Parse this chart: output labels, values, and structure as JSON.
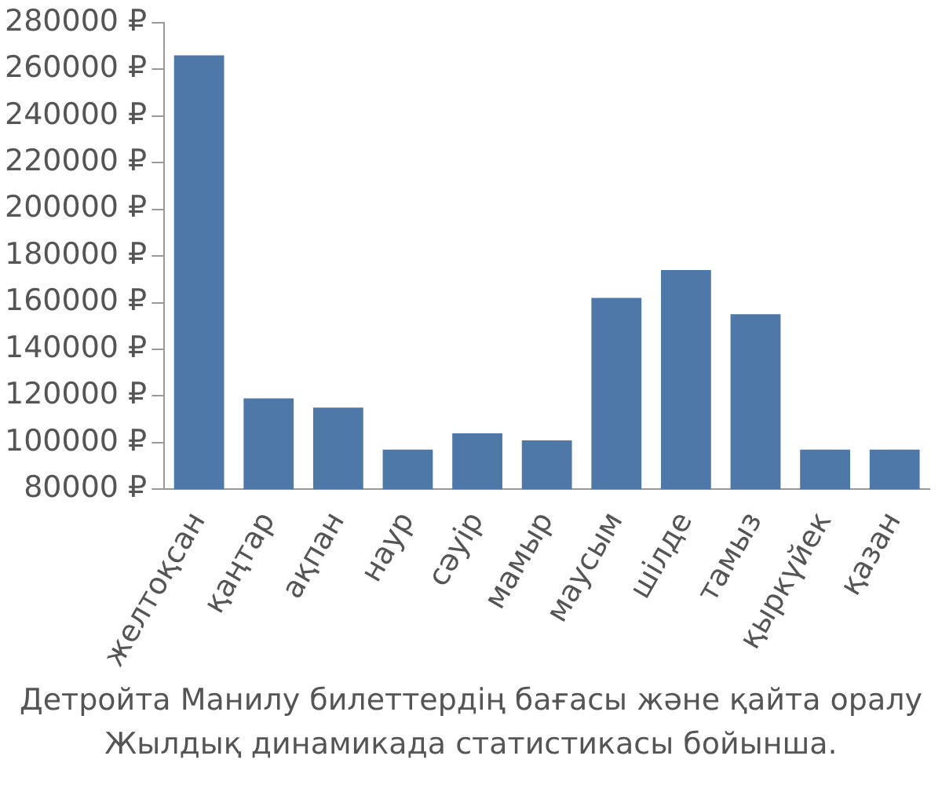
{
  "chart_data": {
    "type": "bar",
    "categories": [
      "желтоқсан",
      "қаңтар",
      "ақпан",
      "наур",
      "сәуір",
      "мамыр",
      "маусым",
      "шілде",
      "тамыз",
      "қыркүйек",
      "қазан"
    ],
    "values": [
      266000,
      119000,
      115000,
      97000,
      104000,
      101000,
      162000,
      174000,
      155000,
      97000,
      97000
    ],
    "color": "#4e78a8",
    "ylim": [
      80000,
      280000
    ],
    "yticks": [
      {
        "value": 80000,
        "label": "80000 ₽"
      },
      {
        "value": 100000,
        "label": "100000 ₽"
      },
      {
        "value": 120000,
        "label": "120000 ₽"
      },
      {
        "value": 140000,
        "label": "140000 ₽"
      },
      {
        "value": 160000,
        "label": "160000 ₽"
      },
      {
        "value": 180000,
        "label": "180000 ₽"
      },
      {
        "value": 200000,
        "label": "200000 ₽"
      },
      {
        "value": 220000,
        "label": "220000 ₽"
      },
      {
        "value": 240000,
        "label": "240000 ₽"
      },
      {
        "value": 260000,
        "label": "260000 ₽"
      },
      {
        "value": 280000,
        "label": "280000 ₽"
      }
    ],
    "grid": false,
    "legend": false,
    "annotations": [
      "Детройта Манилу билеттердің бағасы және қайта оралу",
      "Жылдық динамикада статистикасы бойынша."
    ]
  }
}
